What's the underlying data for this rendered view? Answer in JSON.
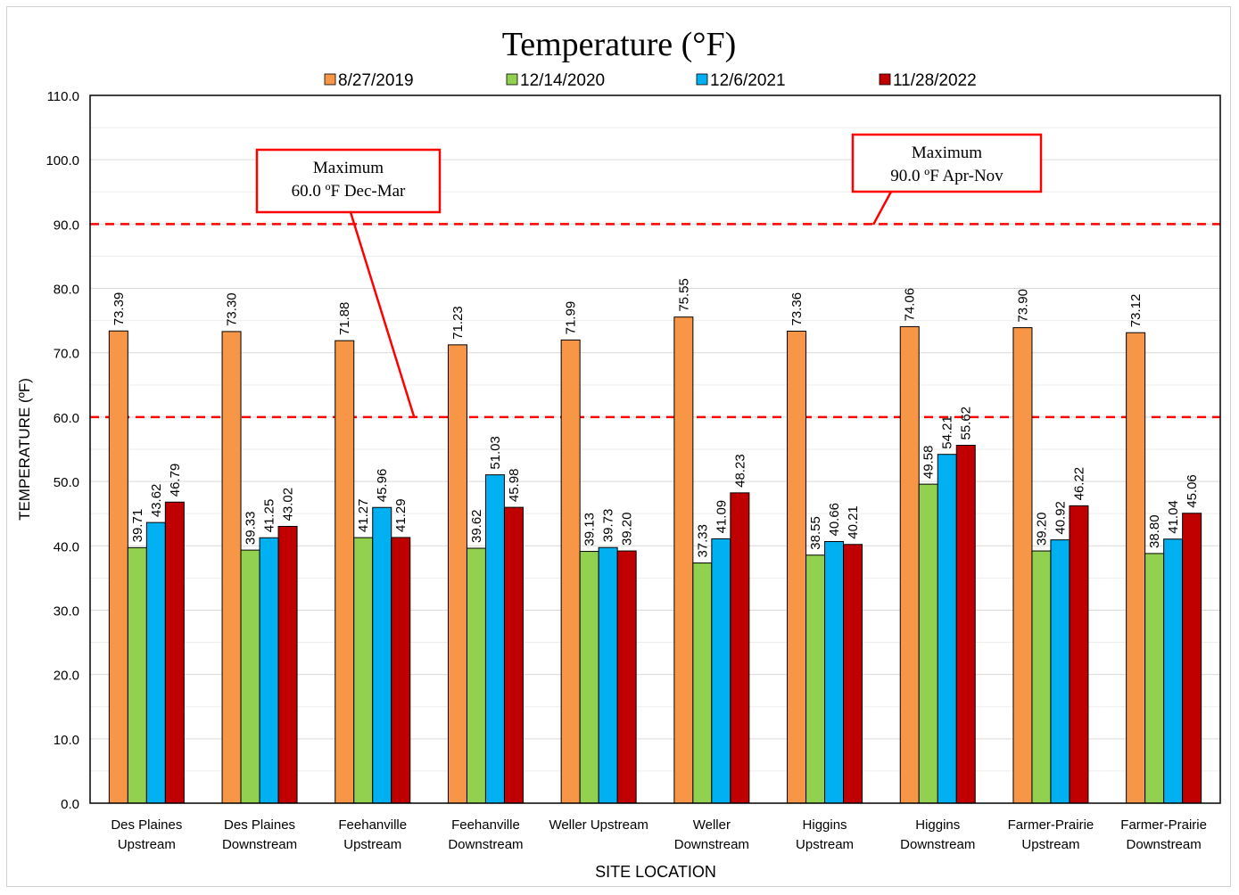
{
  "chart_data": {
    "type": "bar",
    "title": "Temperature (°F)",
    "xlabel": "SITE LOCATION",
    "ylabel": "TEMPERATURE (ºF)",
    "ylim": [
      0,
      110
    ],
    "yticks": [
      "0.0",
      "10.0",
      "20.0",
      "30.0",
      "40.0",
      "50.0",
      "60.0",
      "70.0",
      "80.0",
      "90.0",
      "100.0",
      "110.0"
    ],
    "grid": true,
    "legend_position": "top",
    "categories": [
      [
        "Des Plaines",
        "Upstream"
      ],
      [
        "Des Plaines",
        "Downstream"
      ],
      [
        "Feehanville",
        "Upstream"
      ],
      [
        "Feehanville",
        "Downstream"
      ],
      [
        "Weller Upstream"
      ],
      [
        "Weller",
        "Downstream"
      ],
      [
        "Higgins",
        "Upstream"
      ],
      [
        "Higgins",
        "Downstream"
      ],
      [
        "Farmer-Prairie",
        "Upstream"
      ],
      [
        "Farmer-Prairie",
        "Downstream"
      ]
    ],
    "series": [
      {
        "name": "8/27/2019",
        "color": "#F79646",
        "values": [
          73.39,
          73.3,
          71.88,
          71.23,
          71.99,
          75.55,
          73.36,
          74.06,
          73.9,
          73.12
        ],
        "labels": [
          "73.39",
          "73.30",
          "71.88",
          "71.23",
          "71.99",
          "75.55",
          "73.36",
          "74.06",
          "73.90",
          "73.12"
        ]
      },
      {
        "name": "12/14/2020",
        "color": "#92D050",
        "values": [
          39.71,
          39.33,
          41.27,
          39.62,
          39.13,
          37.33,
          38.55,
          49.58,
          39.2,
          38.8
        ],
        "labels": [
          "39.71",
          "39.33",
          "41.27",
          "39.62",
          "39.13",
          "37.33",
          "38.55",
          "49.58",
          "39.20",
          "38.80"
        ]
      },
      {
        "name": "12/6/2021",
        "color": "#00B0F0",
        "values": [
          43.62,
          41.25,
          45.96,
          51.03,
          39.73,
          41.09,
          40.66,
          54.21,
          40.92,
          41.04
        ],
        "labels": [
          "43.62",
          "41.25",
          "45.96",
          "51.03",
          "39.73",
          "41.09",
          "40.66",
          "54.21",
          "40.92",
          "41.04"
        ]
      },
      {
        "name": "11/28/2022",
        "color": "#C00000",
        "values": [
          46.79,
          43.02,
          41.29,
          45.98,
          39.2,
          48.23,
          40.21,
          55.62,
          46.22,
          45.06
        ],
        "labels": [
          "46.79",
          "43.02",
          "41.29",
          "45.98",
          "39.20",
          "48.23",
          "40.21",
          "55.62",
          "46.22",
          "45.06"
        ]
      }
    ],
    "reference_lines": [
      {
        "value": 90.0,
        "color": "#FF0000",
        "style": "dashed",
        "annotation": [
          "Maximum",
          "90.0 ºF  Apr-Nov"
        ]
      },
      {
        "value": 60.0,
        "color": "#FF0000",
        "style": "dashed",
        "annotation": [
          "Maximum",
          "60.0 ºF  Dec-Mar"
        ]
      }
    ]
  }
}
